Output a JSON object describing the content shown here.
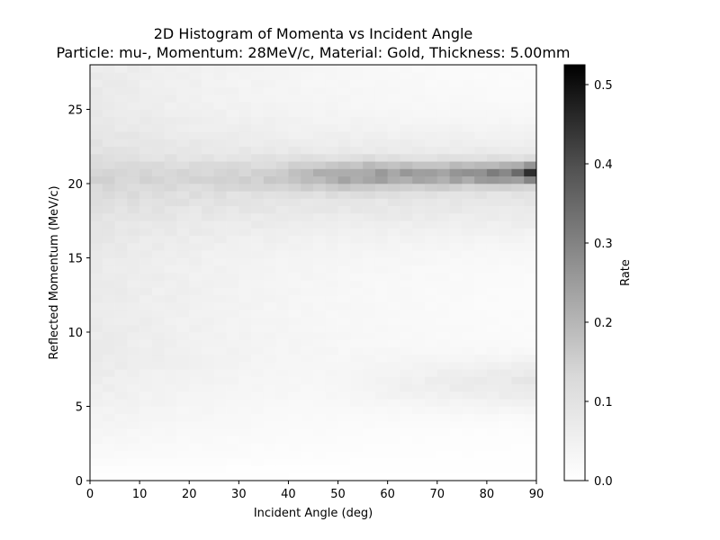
{
  "chart_data": {
    "type": "heatmap",
    "title": "2D Histogram of Momenta vs Incident Angle",
    "subtitle": "Particle: mu-, Momentum: 28MeV/c, Material: Gold, Thickness: 5.00mm",
    "xlabel": "Incident Angle (deg)",
    "ylabel": "Reflected Momentum (MeV/c)",
    "colorbar_label": "Rate",
    "xlim": [
      0,
      90
    ],
    "ylim": [
      0,
      28
    ],
    "x_ticks": [
      0,
      10,
      20,
      30,
      40,
      50,
      60,
      70,
      80,
      90
    ],
    "y_ticks": [
      0,
      5,
      10,
      15,
      20,
      25
    ],
    "colorbar_range": [
      0.0,
      0.525
    ],
    "colorbar_ticks": [
      "0.0",
      "0.1",
      "0.2",
      "0.3",
      "0.4",
      "0.5"
    ],
    "colormap": "Greys",
    "grid": false,
    "bins": {
      "x": [
        0,
        2.5,
        5,
        7.5,
        10,
        12.5,
        15,
        17.5,
        20,
        22.5,
        25,
        27.5,
        30,
        32.5,
        35,
        37.5,
        40,
        42.5,
        45,
        47.5,
        50,
        52.5,
        55,
        57.5,
        60,
        62.5,
        65,
        67.5,
        70,
        72.5,
        75,
        77.5,
        80,
        82.5,
        85,
        87.5
      ],
      "x_width": 2.5,
      "y": [
        0,
        0.5,
        1,
        1.5,
        2,
        2.5,
        3,
        3.5,
        4,
        4.5,
        5,
        5.5,
        6,
        6.5,
        7,
        7.5,
        8,
        8.5,
        9,
        9.5,
        10,
        10.5,
        11,
        11.5,
        12,
        12.5,
        13,
        13.5,
        14,
        14.5,
        15,
        15.5,
        16,
        16.5,
        17,
        17.5,
        18,
        18.5,
        19,
        19.5,
        20,
        20.5,
        21,
        21.5,
        22,
        22.5,
        23,
        23.5,
        24,
        24.5,
        25,
        25.5,
        26,
        26.5,
        27,
        27.5
      ],
      "y_height": 0.5,
      "features": [
        {
          "description": "momentum ridge",
          "y_center": 20.4,
          "peak_rate_at_90deg": 0.52
        },
        {
          "description": "low momentum band",
          "y_center": 6.5,
          "max_rate": 0.05
        }
      ]
    }
  }
}
